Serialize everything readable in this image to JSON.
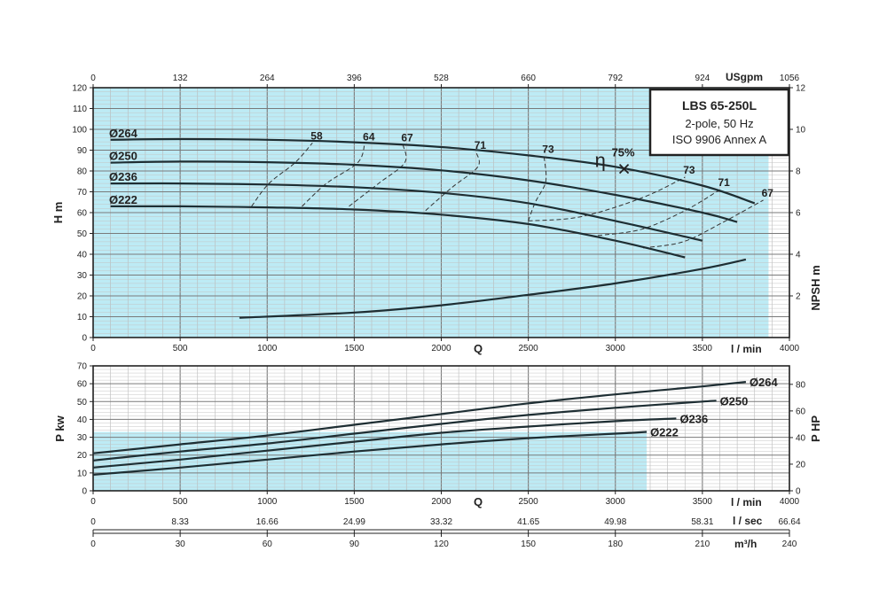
{
  "chart_data": [
    {
      "type": "line",
      "panel": "head",
      "xlabel": "Q",
      "ylabel": "H m",
      "y2label": "NPSH m",
      "x_unit": "l / min",
      "top_axis_unit": "USgpm",
      "xlim": [
        0,
        4000
      ],
      "ylim": [
        0,
        120
      ],
      "y2lim": [
        0,
        12
      ],
      "grid": true,
      "x_ticks": [
        "0",
        "500",
        "1000",
        "1500",
        "2000",
        "2500",
        "3000",
        "3500",
        "4000"
      ],
      "y_ticks": [
        "0",
        "10",
        "20",
        "30",
        "40",
        "50",
        "60",
        "70",
        "80",
        "90",
        "100",
        "110",
        "120"
      ],
      "y2_ticks": [
        "2",
        "4",
        "6",
        "8",
        "10",
        "12"
      ],
      "top_ticks": [
        "0",
        "132",
        "264",
        "396",
        "528",
        "660",
        "792",
        "924",
        "1056"
      ],
      "legend_box": {
        "model": "LBS 65-250L",
        "line2": "2-pole, 50 Hz",
        "line3": "ISO 9906 Annex A",
        "placement": "top-right"
      },
      "series": [
        {
          "name": "Ø264",
          "x": [
            100,
            500,
            1000,
            1500,
            2000,
            2500,
            3000,
            3500,
            3800
          ],
          "y": [
            95,
            95.3,
            95,
            93.8,
            91.5,
            87.5,
            82,
            73,
            64.5
          ]
        },
        {
          "name": "Ø250",
          "x": [
            100,
            500,
            1000,
            1500,
            2000,
            2500,
            3000,
            3500,
            3700
          ],
          "y": [
            84,
            84.5,
            84.2,
            83,
            80.3,
            75.5,
            68.5,
            60,
            55.5
          ]
        },
        {
          "name": "Ø236",
          "x": [
            100,
            500,
            1000,
            1500,
            2000,
            2500,
            3000,
            3500
          ],
          "y": [
            74,
            74,
            73.5,
            72.2,
            69.5,
            64.5,
            56,
            46.5
          ]
        },
        {
          "name": "Ø222",
          "x": [
            100,
            500,
            1000,
            1500,
            2000,
            2500,
            3000,
            3400
          ],
          "y": [
            63,
            63,
            62.5,
            61.5,
            59,
            54.5,
            46.5,
            38.5
          ]
        }
      ],
      "npsh": {
        "x": [
          840,
          1500,
          2000,
          2500,
          3000,
          3500,
          3750
        ],
        "y": [
          0.95,
          1.2,
          1.55,
          2.05,
          2.6,
          3.3,
          3.75
        ]
      },
      "efficiency_curves": [
        {
          "label": "58",
          "x": [
            910,
            1010,
            1160,
            1260
          ],
          "y": [
            63,
            74,
            84,
            93.5
          ]
        },
        {
          "label": "64",
          "x": [
            1200,
            1340,
            1520,
            1560
          ],
          "y": [
            63,
            74,
            84,
            93
          ]
        },
        {
          "label": "67",
          "x": [
            1470,
            1640,
            1790,
            1780
          ],
          "y": [
            63,
            74,
            84,
            92.5
          ]
        },
        {
          "label": "71",
          "x": [
            1910,
            2060,
            2210,
            2200
          ],
          "y": [
            61,
            72,
            82,
            89
          ]
        },
        {
          "label": "73",
          "x": [
            2500,
            2540,
            2600,
            2590
          ],
          "y": [
            56,
            65,
            75,
            87
          ]
        },
        {
          "label": "73",
          "x": [
            2500,
            2800,
            3150,
            3400
          ],
          "y": [
            56,
            58,
            67,
            77
          ]
        },
        {
          "label": "71",
          "x": [
            2900,
            3150,
            3400,
            3600
          ],
          "y": [
            49,
            52,
            61,
            71
          ]
        },
        {
          "label": "67",
          "x": [
            3160,
            3390,
            3610,
            3850
          ],
          "y": [
            43,
            46,
            55,
            66
          ]
        }
      ],
      "bep": {
        "label": "η",
        "sublabel": "75%",
        "x": 3050,
        "y": 81
      },
      "shaded_region": {
        "x_max": 3880
      }
    },
    {
      "type": "line",
      "panel": "power",
      "xlabel": "Q",
      "ylabel": "P kw",
      "y2label": "P HP",
      "xlim": [
        0,
        4000
      ],
      "ylim": [
        0,
        70
      ],
      "grid": true,
      "x_ticks": [
        "0",
        "500",
        "1000",
        "1500",
        "2000",
        "2500",
        "3000",
        "3500",
        "4000"
      ],
      "y_ticks": [
        "0",
        "10",
        "20",
        "30",
        "40",
        "50",
        "60",
        "70"
      ],
      "y2_ticks": [
        "0",
        "20",
        "40",
        "60",
        "80"
      ],
      "x_unit": "l / min",
      "sec_axis_unit": "l / sec",
      "sec_ticks": [
        "0",
        "8.33",
        "16.66",
        "24.99",
        "33.32",
        "41.65",
        "49.98",
        "58.31",
        "66.64"
      ],
      "m3h_axis_unit": "m³/h",
      "m3h_ticks": [
        "0",
        "30",
        "60",
        "90",
        "120",
        "150",
        "180",
        "210",
        "240"
      ],
      "series": [
        {
          "name": "Ø264",
          "x": [
            0,
            500,
            1000,
            1500,
            2000,
            2500,
            3000,
            3500,
            3750
          ],
          "y": [
            21,
            26,
            31,
            37,
            43,
            49,
            54,
            58.5,
            61
          ]
        },
        {
          "name": "Ø250",
          "x": [
            0,
            500,
            1000,
            1500,
            2000,
            2500,
            3000,
            3500,
            3580
          ],
          "y": [
            17,
            22,
            26.5,
            32,
            37.5,
            42.5,
            46.5,
            50,
            50.5
          ]
        },
        {
          "name": "Ø236",
          "x": [
            0,
            500,
            1000,
            1500,
            2000,
            2500,
            3000,
            3350
          ],
          "y": [
            13,
            17.5,
            22.5,
            27.5,
            32.5,
            36,
            39,
            40.5
          ]
        },
        {
          "name": "Ø222",
          "x": [
            0,
            500,
            1000,
            1500,
            2000,
            2500,
            3000,
            3180
          ],
          "y": [
            9,
            13,
            17.5,
            22,
            26,
            29.5,
            32,
            33
          ]
        }
      ],
      "shaded_region": {
        "x_max": 3180
      }
    }
  ]
}
